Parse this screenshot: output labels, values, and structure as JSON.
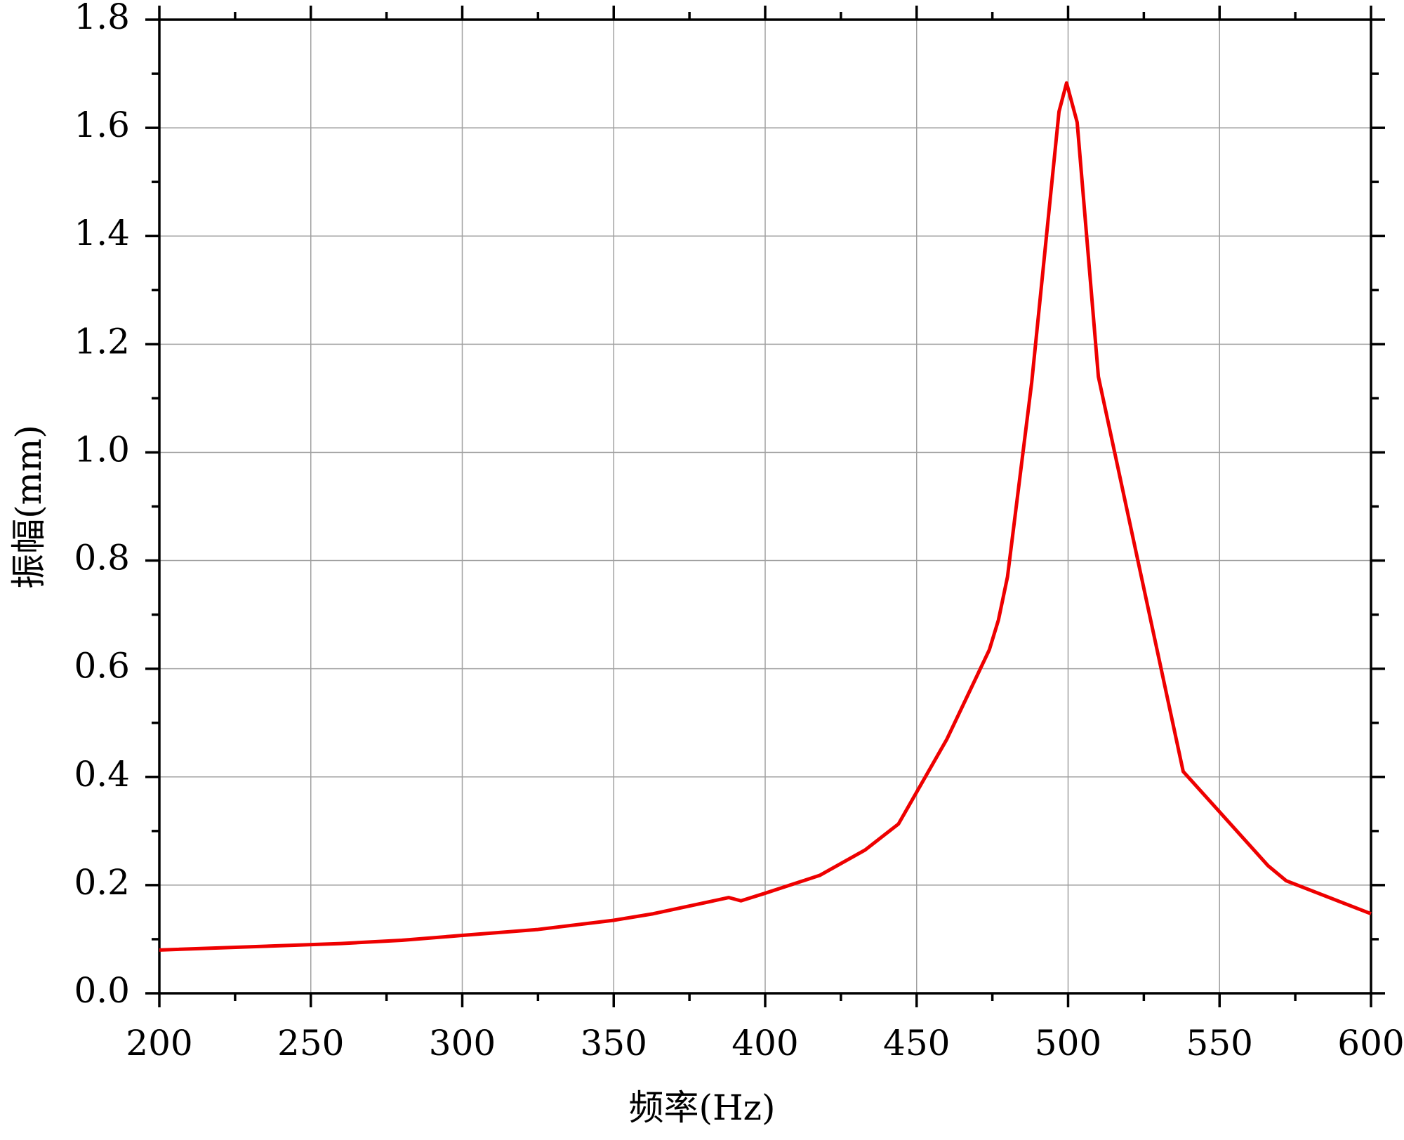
{
  "chart_data": {
    "type": "line",
    "xlabel": "频率(Hz)",
    "ylabel": "振幅(mm)",
    "x": [
      200,
      260,
      280,
      300,
      325,
      350,
      363,
      388,
      392,
      400,
      418,
      433,
      444,
      460,
      474,
      477,
      480,
      488,
      497,
      499.5,
      503,
      510,
      538,
      566,
      572,
      600
    ],
    "series": [
      {
        "name": "振幅",
        "color": "#ee0000",
        "values": [
          0.08,
          0.092,
          0.098,
          0.107,
          0.118,
          0.135,
          0.147,
          0.177,
          0.171,
          0.185,
          0.218,
          0.265,
          0.313,
          0.47,
          0.635,
          0.69,
          0.77,
          1.13,
          1.63,
          1.683,
          1.61,
          1.14,
          0.41,
          0.236,
          0.208,
          0.147
        ]
      }
    ],
    "xlim": [
      200,
      600
    ],
    "xticks": [
      200,
      250,
      300,
      350,
      400,
      450,
      500,
      550,
      600
    ],
    "ylim": [
      0,
      1.8
    ],
    "yticks": [
      {
        "value": 0,
        "label": "0.0"
      },
      0.2,
      0.4,
      0.6,
      0.8,
      {
        "value": 1,
        "label": "1.0"
      },
      1.2,
      1.4,
      1.6,
      1.8
    ],
    "grid": true
  }
}
